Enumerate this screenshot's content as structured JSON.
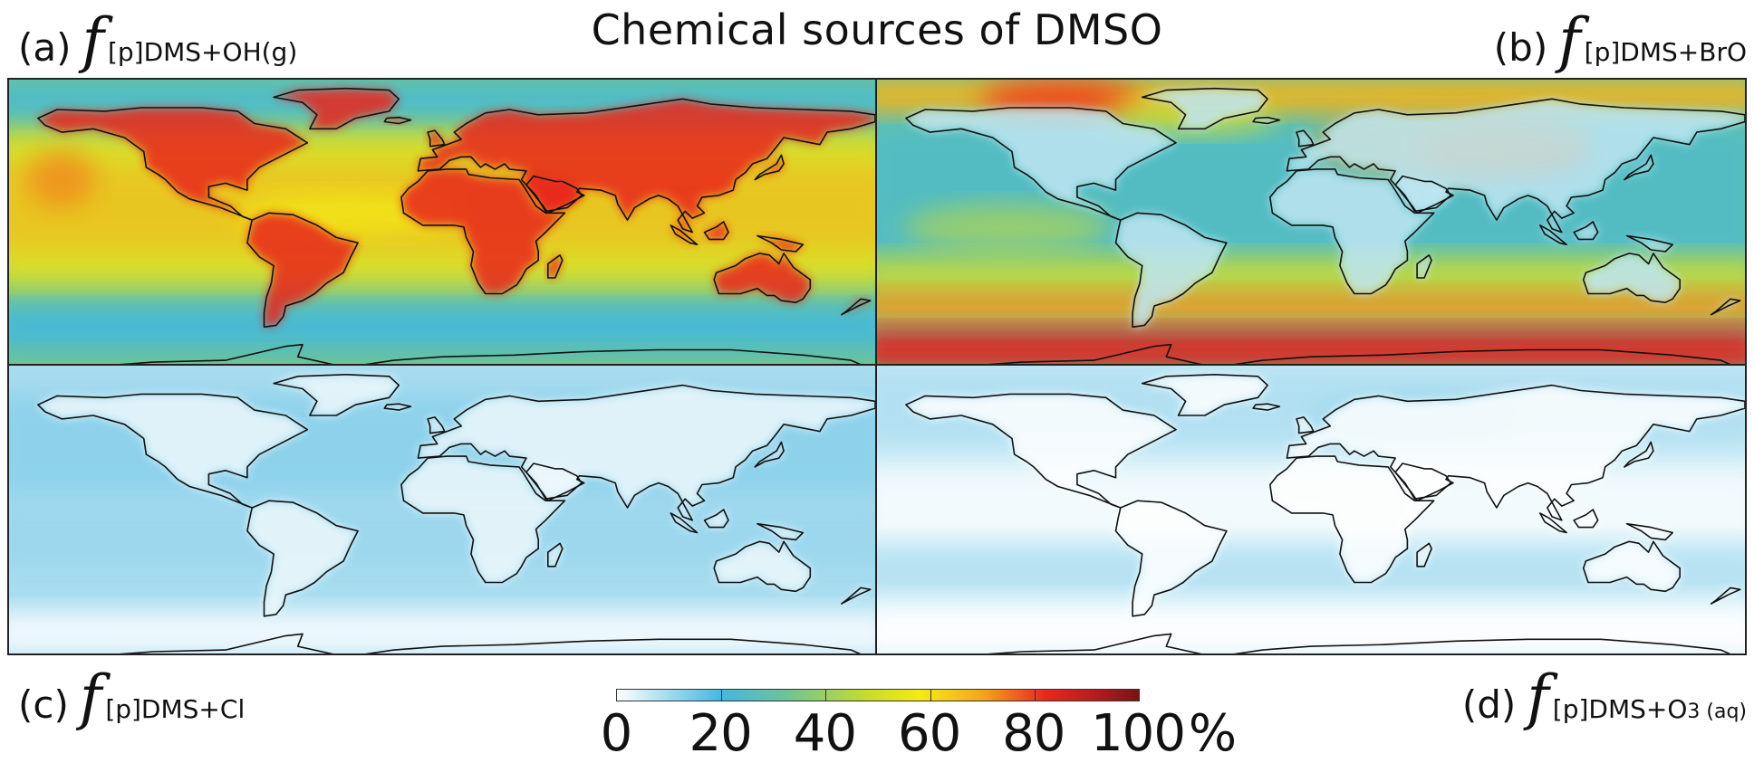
{
  "title": "Chemical sources of DMSO",
  "panels": [
    {
      "id": "a",
      "letter": "(a)",
      "f": "f",
      "sub": "[p]DMS+OH(g)",
      "sub_small": ""
    },
    {
      "id": "b",
      "letter": "(b)",
      "f": "f",
      "sub": "[p]DMS+BrO",
      "sub_small": ""
    },
    {
      "id": "c",
      "letter": "(c)",
      "f": "f",
      "sub": "[p]DMS+Cl",
      "sub_small": ""
    },
    {
      "id": "d",
      "letter": "(d)",
      "f": "f",
      "sub": "[p]DMS+O",
      "sub_small": "3 (aq)"
    }
  ],
  "colorbar": {
    "ticks": [
      "0",
      "20",
      "40",
      "60",
      "80",
      "100"
    ],
    "unit": "%",
    "range": [
      0,
      100
    ],
    "colors": [
      "#ffffff",
      "#41b8e2",
      "#6cc39b",
      "#c8dc2a",
      "#f5ea16",
      "#f7a51d",
      "#e8281d",
      "#b31d1c",
      "#7c1115"
    ]
  },
  "maps": {
    "a": {
      "ocean_color": "#6cc39b",
      "land_color": "#e8281d"
    },
    "b": {
      "ocean_color": "#6cc39b",
      "land_color": "#bfe6f2"
    },
    "c": {
      "ocean_color": "#a8dcef",
      "land_color": "#eef8fc"
    },
    "d": {
      "ocean_color": "#c9ebf6",
      "land_color": "#ffffff"
    }
  }
}
